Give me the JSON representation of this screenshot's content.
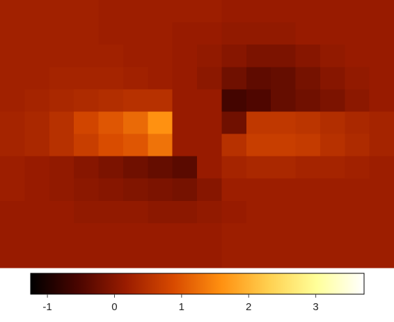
{
  "chart_data": {
    "type": "heatmap",
    "z": [
      [
        0.25,
        0.25,
        0.25,
        0.25,
        0.2,
        0.2,
        0.2,
        0.2,
        0.2,
        0.15,
        0.15,
        0.15,
        0.15,
        0.15,
        0.15,
        0.15
      ],
      [
        0.25,
        0.25,
        0.25,
        0.25,
        0.2,
        0.2,
        0.2,
        0.15,
        0.15,
        0.1,
        0.1,
        0.1,
        0.15,
        0.15,
        0.15,
        0.15
      ],
      [
        0.25,
        0.25,
        0.25,
        0.25,
        0.25,
        0.2,
        0.2,
        0.15,
        0.1,
        0.0,
        -0.1,
        -0.1,
        0.0,
        0.1,
        0.15,
        0.15
      ],
      [
        0.25,
        0.25,
        0.3,
        0.3,
        0.3,
        0.25,
        0.2,
        0.15,
        0.05,
        -0.2,
        -0.35,
        -0.3,
        -0.15,
        0.0,
        0.1,
        0.15
      ],
      [
        0.25,
        0.3,
        0.35,
        0.4,
        0.45,
        0.5,
        0.5,
        0.15,
        0.15,
        -0.6,
        -0.5,
        -0.3,
        -0.2,
        -0.1,
        0.05,
        0.15
      ],
      [
        0.3,
        0.35,
        0.5,
        0.8,
        1.0,
        1.2,
        1.6,
        0.15,
        0.15,
        -0.2,
        0.6,
        0.6,
        0.55,
        0.45,
        0.35,
        0.3
      ],
      [
        0.3,
        0.35,
        0.5,
        0.7,
        0.9,
        1.0,
        1.3,
        0.15,
        0.15,
        0.5,
        0.7,
        0.7,
        0.65,
        0.5,
        0.4,
        0.3
      ],
      [
        0.2,
        0.15,
        0.1,
        0.0,
        -0.1,
        -0.2,
        -0.3,
        -0.4,
        0.15,
        0.3,
        0.35,
        0.35,
        0.3,
        0.3,
        0.25,
        0.2
      ],
      [
        0.2,
        0.15,
        0.1,
        0.05,
        0.0,
        -0.05,
        -0.1,
        -0.15,
        0.0,
        0.2,
        0.2,
        0.2,
        0.2,
        0.2,
        0.2,
        0.2
      ],
      [
        0.15,
        0.15,
        0.15,
        0.1,
        0.1,
        0.1,
        0.05,
        0.05,
        0.1,
        0.15,
        0.2,
        0.2,
        0.2,
        0.2,
        0.2,
        0.2
      ],
      [
        0.15,
        0.15,
        0.15,
        0.15,
        0.15,
        0.15,
        0.15,
        0.15,
        0.15,
        0.2,
        0.2,
        0.2,
        0.2,
        0.2,
        0.2,
        0.2
      ],
      [
        0.15,
        0.15,
        0.15,
        0.15,
        0.15,
        0.15,
        0.15,
        0.15,
        0.15,
        0.2,
        0.2,
        0.2,
        0.2,
        0.2,
        0.2,
        0.2
      ]
    ],
    "zlim": [
      -1.25,
      3.72
    ],
    "zticks": [
      -1,
      0,
      1,
      2,
      3
    ],
    "colormap": [
      "#000000",
      "#4a0500",
      "#9a1c00",
      "#d84a00",
      "#ff9010",
      "#ffd050",
      "#ffff99",
      "#ffffff"
    ]
  }
}
